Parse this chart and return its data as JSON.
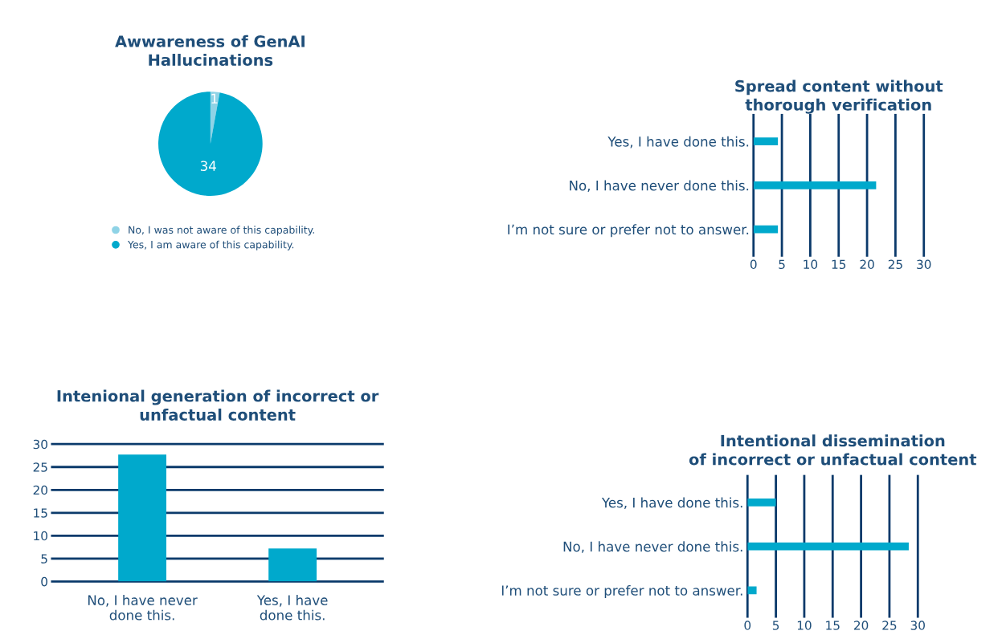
{
  "chart_data": [
    {
      "type": "pie",
      "title": "Awwareness of GenAI\nHallucinations",
      "categories": [
        "No, I was not aware of this capability.",
        "Yes, I am aware of this capability."
      ],
      "values": [
        1,
        34
      ],
      "colors": [
        "#8fd3e6",
        "#00a9cc"
      ],
      "data_labels": true,
      "legend": "bottom"
    },
    {
      "type": "bar",
      "orientation": "horizontal",
      "title": "Spread content without\nthorough verification",
      "categories": [
        "Yes, I have done this.",
        "No, I have never done this.",
        "I’m not sure or prefer not to answer."
      ],
      "values": [
        4.3,
        21.6,
        4.3
      ],
      "color": "#00a9cc",
      "xlim": [
        0,
        30
      ],
      "xticks": [
        0,
        5,
        10,
        15,
        20,
        25,
        30
      ],
      "grid": "x"
    },
    {
      "type": "bar",
      "title": "Intenional generation of incorrect or\nunfactual content",
      "categories": [
        "No, I have never\ndone this.",
        "Yes, I have\ndone this."
      ],
      "values": [
        27.7,
        7.2
      ],
      "color": "#00a9cc",
      "ylim": [
        0,
        30
      ],
      "yticks": [
        0,
        5,
        10,
        15,
        20,
        25,
        30
      ],
      "grid": "y"
    },
    {
      "type": "bar",
      "orientation": "horizontal",
      "title": "Intentional dissemination\nof incorrect or unfactual content",
      "categories": [
        "Yes, I have done this.",
        "No, I have never done this.",
        "I’m not sure or prefer not to answer."
      ],
      "values": [
        5,
        28.4,
        1.6
      ],
      "color": "#00a9cc",
      "xlim": [
        0,
        30
      ],
      "xticks": [
        0,
        5,
        10,
        15,
        20,
        25,
        30
      ],
      "grid": "x"
    }
  ]
}
